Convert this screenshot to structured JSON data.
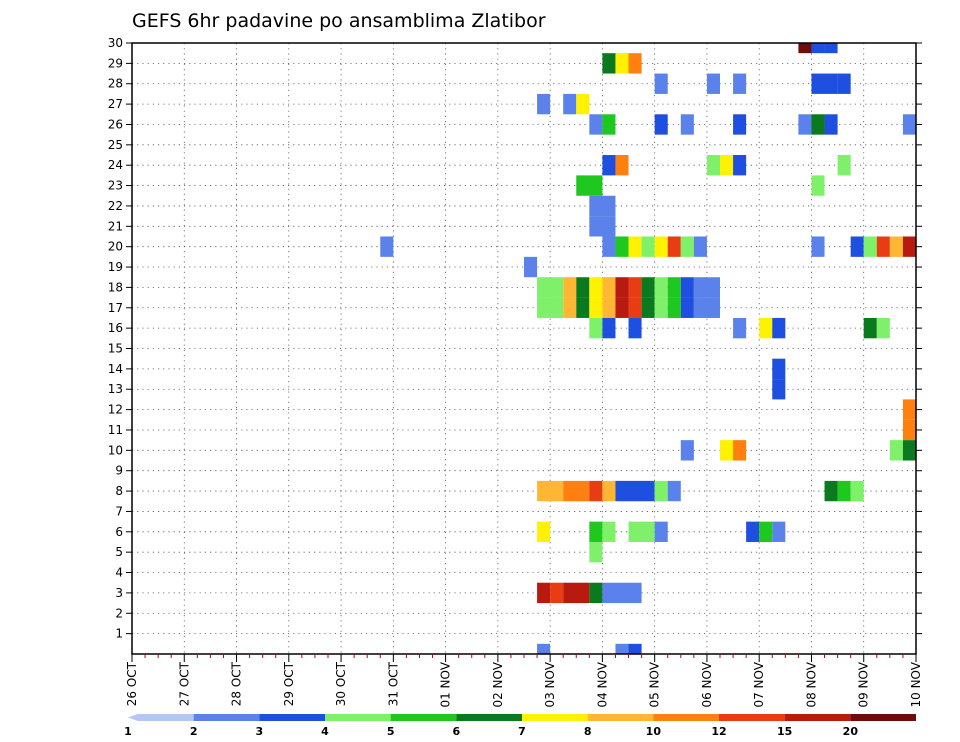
{
  "chart_data": {
    "type": "heatmap",
    "title": "GEFS 6hr padavine po ansamblima Zlatibor",
    "y_ticks": [
      "1",
      "2",
      "3",
      "4",
      "5",
      "6",
      "7",
      "8",
      "9",
      "10",
      "11",
      "12",
      "13",
      "14",
      "15",
      "16",
      "17",
      "18",
      "19",
      "20",
      "21",
      "22",
      "23",
      "24",
      "25",
      "26",
      "27",
      "28",
      "29",
      "30"
    ],
    "x_ticks": [
      "26 OCT",
      "27 OCT",
      "28 OCT",
      "29 OCT",
      "30 OCT",
      "31 OCT",
      "01 NOV",
      "02 NOV",
      "03 NOV",
      "04 NOV",
      "05 NOV",
      "06 NOV",
      "07 NOV",
      "08 NOV",
      "09 NOV",
      "10 NOV"
    ],
    "x_range_days": [
      0,
      15
    ],
    "y_range": [
      0,
      30
    ],
    "grid": true,
    "colorbar": {
      "labels": [
        "1",
        "2",
        "3",
        "4",
        "5",
        "6",
        "7",
        "8",
        "10",
        "12",
        "15",
        "20"
      ],
      "colors": [
        "#b3c6f5",
        "#5b82ea",
        "#1f4fe0",
        "#7ef06a",
        "#1ec81e",
        "#0b7a1e",
        "#fff200",
        "#ffb733",
        "#ff7f0f",
        "#e83c14",
        "#b81a0f",
        "#6e0b0b"
      ]
    },
    "cells": [
      [
        0,
        30,
        12.75,
        0.25,
        11
      ],
      [
        0,
        30,
        13.0,
        0.25,
        2
      ],
      [
        0,
        30,
        13.25,
        0.25,
        2
      ],
      [
        0,
        29,
        9.0,
        0.25,
        5
      ],
      [
        0,
        29,
        9.25,
        0.25,
        6
      ],
      [
        0,
        29,
        9.5,
        0.25,
        8
      ],
      [
        0,
        28,
        10.0,
        0.25,
        1
      ],
      [
        0,
        28,
        11.0,
        0.25,
        1
      ],
      [
        0,
        28,
        11.5,
        0.25,
        1
      ],
      [
        0,
        28,
        13.0,
        0.5,
        2
      ],
      [
        0,
        28,
        13.5,
        0.25,
        2
      ],
      [
        0,
        27,
        7.75,
        0.25,
        1
      ],
      [
        0,
        27,
        8.25,
        0.25,
        1
      ],
      [
        0,
        27,
        8.5,
        0.25,
        6
      ],
      [
        0,
        26,
        8.75,
        0.25,
        1
      ],
      [
        0,
        26,
        9.0,
        0.25,
        4
      ],
      [
        0,
        26,
        10.0,
        0.25,
        2
      ],
      [
        0,
        26,
        10.5,
        0.25,
        1
      ],
      [
        0,
        26,
        11.5,
        0.25,
        2
      ],
      [
        0,
        26,
        12.75,
        0.25,
        1
      ],
      [
        0,
        26,
        13.0,
        0.25,
        5
      ],
      [
        0,
        26,
        13.25,
        0.25,
        2
      ],
      [
        0,
        26,
        14.75,
        0.25,
        1
      ],
      [
        0,
        24,
        9.0,
        0.25,
        2
      ],
      [
        0,
        24,
        9.25,
        0.25,
        8
      ],
      [
        0,
        24,
        11.0,
        0.25,
        3
      ],
      [
        0,
        24,
        11.25,
        0.25,
        6
      ],
      [
        0,
        24,
        11.5,
        0.25,
        2
      ],
      [
        0,
        24,
        13.5,
        0.25,
        3
      ],
      [
        0,
        23,
        8.5,
        0.5,
        4
      ],
      [
        0,
        23,
        13.0,
        0.25,
        3
      ],
      [
        0,
        22,
        8.75,
        0.5,
        1
      ],
      [
        0,
        21,
        8.75,
        0.5,
        1
      ],
      [
        0,
        20,
        4.75,
        0.25,
        1
      ],
      [
        0,
        20,
        9.0,
        0.25,
        1
      ],
      [
        0,
        20,
        9.25,
        0.25,
        4
      ],
      [
        0,
        20,
        9.5,
        0.25,
        6
      ],
      [
        0,
        20,
        9.75,
        0.25,
        3
      ],
      [
        0,
        20,
        10.0,
        0.25,
        6
      ],
      [
        0,
        20,
        10.25,
        0.25,
        9
      ],
      [
        0,
        20,
        10.5,
        0.25,
        3
      ],
      [
        0,
        20,
        10.75,
        0.25,
        1
      ],
      [
        0,
        20,
        13.0,
        0.25,
        1
      ],
      [
        0,
        20,
        13.75,
        0.25,
        2
      ],
      [
        0,
        20,
        14.0,
        0.25,
        3
      ],
      [
        0,
        20,
        14.25,
        0.25,
        9
      ],
      [
        0,
        20,
        14.5,
        0.25,
        7
      ],
      [
        0,
        20,
        14.75,
        0.25,
        10
      ],
      [
        0,
        19,
        7.5,
        0.25,
        1
      ],
      [
        0,
        18,
        7.75,
        0.5,
        3
      ],
      [
        0,
        18,
        8.25,
        0.25,
        7
      ],
      [
        0,
        18,
        8.5,
        0.25,
        5
      ],
      [
        0,
        18,
        8.75,
        0.25,
        6
      ],
      [
        0,
        18,
        9.0,
        0.25,
        7
      ],
      [
        0,
        18,
        9.25,
        0.25,
        10
      ],
      [
        0,
        18,
        9.5,
        0.25,
        9
      ],
      [
        0,
        18,
        9.75,
        0.25,
        5
      ],
      [
        0,
        18,
        10.0,
        0.25,
        3
      ],
      [
        0,
        18,
        10.25,
        0.25,
        4
      ],
      [
        0,
        18,
        10.5,
        0.25,
        2
      ],
      [
        0,
        18,
        10.75,
        0.5,
        1
      ],
      [
        0,
        17,
        7.75,
        0.5,
        3
      ],
      [
        0,
        17,
        8.25,
        0.25,
        7
      ],
      [
        0,
        17,
        8.5,
        0.25,
        5
      ],
      [
        0,
        17,
        8.75,
        0.25,
        6
      ],
      [
        0,
        17,
        9.0,
        0.25,
        7
      ],
      [
        0,
        17,
        9.25,
        0.25,
        10
      ],
      [
        0,
        17,
        9.5,
        0.25,
        9
      ],
      [
        0,
        17,
        9.75,
        0.25,
        5
      ],
      [
        0,
        17,
        10.0,
        0.25,
        3
      ],
      [
        0,
        17,
        10.25,
        0.25,
        4
      ],
      [
        0,
        17,
        10.5,
        0.25,
        2
      ],
      [
        0,
        17,
        10.75,
        0.5,
        1
      ],
      [
        0,
        16,
        8.75,
        0.25,
        3
      ],
      [
        0,
        16,
        9.0,
        0.25,
        2
      ],
      [
        0,
        16,
        9.5,
        0.25,
        2
      ],
      [
        0,
        16,
        11.5,
        0.25,
        1
      ],
      [
        0,
        16,
        12.0,
        0.25,
        6
      ],
      [
        0,
        16,
        12.25,
        0.25,
        2
      ],
      [
        0,
        16,
        14.0,
        0.25,
        5
      ],
      [
        0,
        16,
        14.25,
        0.25,
        3
      ],
      [
        0,
        14,
        12.25,
        0.25,
        2
      ],
      [
        0,
        13,
        12.25,
        0.25,
        2
      ],
      [
        0,
        12,
        14.75,
        0.25,
        8
      ],
      [
        0,
        11,
        14.75,
        0.25,
        8
      ],
      [
        0,
        10,
        10.5,
        0.25,
        1
      ],
      [
        0,
        10,
        11.25,
        0.25,
        6
      ],
      [
        0,
        10,
        11.5,
        0.25,
        8
      ],
      [
        0,
        10,
        14.5,
        0.25,
        3
      ],
      [
        0,
        10,
        14.75,
        0.25,
        5
      ],
      [
        0,
        8,
        7.75,
        0.5,
        7
      ],
      [
        0,
        8,
        8.25,
        0.5,
        8
      ],
      [
        0,
        8,
        8.75,
        0.25,
        9
      ],
      [
        0,
        8,
        9.0,
        0.25,
        7
      ],
      [
        0,
        8,
        9.25,
        0.75,
        2
      ],
      [
        0,
        8,
        10.0,
        0.25,
        3
      ],
      [
        0,
        8,
        10.25,
        0.25,
        1
      ],
      [
        0,
        8,
        13.25,
        0.25,
        5
      ],
      [
        0,
        8,
        13.5,
        0.25,
        4
      ],
      [
        0,
        8,
        13.75,
        0.25,
        3
      ],
      [
        0,
        6,
        7.75,
        0.25,
        6
      ],
      [
        0,
        6,
        8.75,
        0.25,
        4
      ],
      [
        0,
        6,
        9.0,
        0.25,
        3
      ],
      [
        0,
        6,
        9.5,
        0.5,
        3
      ],
      [
        0,
        6,
        10.0,
        0.25,
        1
      ],
      [
        0,
        6,
        11.75,
        0.25,
        2
      ],
      [
        0,
        6,
        12.0,
        0.25,
        4
      ],
      [
        0,
        6,
        12.25,
        0.25,
        1
      ],
      [
        0,
        5,
        8.75,
        0.25,
        3
      ],
      [
        0,
        3,
        7.75,
        0.25,
        10
      ],
      [
        0,
        3,
        8.0,
        0.25,
        9
      ],
      [
        0,
        3,
        8.25,
        0.5,
        10
      ],
      [
        0,
        3,
        8.75,
        0.25,
        5
      ],
      [
        0,
        3,
        9.0,
        0.75,
        1
      ],
      [
        0,
        0,
        7.75,
        0.25,
        1
      ],
      [
        0,
        0,
        9.25,
        0.25,
        1
      ],
      [
        0,
        0,
        9.5,
        0.25,
        2
      ]
    ]
  }
}
